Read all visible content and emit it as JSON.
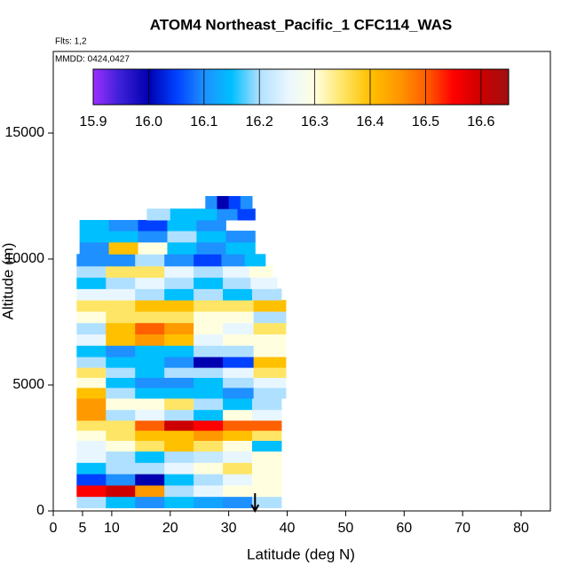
{
  "chart_data": {
    "type": "curtain",
    "title": "ATOM4 Northeast_Pacific_1 CFC114_WAS",
    "subtitle": "Flts: 1,2",
    "annotation": "MMDD: 0424,0427",
    "x_label": "Latitude (deg N)",
    "y_label": "Altitude (m)",
    "xlim": [
      0,
      85
    ],
    "ylim": [
      0,
      18240
    ],
    "xticks": [
      0,
      5,
      10,
      20,
      30,
      40,
      50,
      60,
      70,
      80
    ],
    "yticks": [
      0,
      5000,
      10000,
      15000
    ],
    "marker_x": 34.5,
    "colorbar": {
      "lim": [
        15.9,
        16.65
      ],
      "ticks": [
        15.9,
        {
          "value": 16,
          "label": "16.0"
        },
        16.1,
        16.2,
        16.3,
        16.4,
        16.5,
        16.6
      ],
      "colors": [
        "#9b30ff",
        "#3a1fd6",
        "#0000b0",
        "#0040ff",
        "#1e90ff",
        "#00bfff",
        "#b0e0ff",
        "#e8f6ff",
        "#ffffe0",
        "#ffe566",
        "#ffc000",
        "#ff9900",
        "#ff6000",
        "#ff0000",
        "#cc0000",
        "#a01010"
      ]
    },
    "rows": [
      {
        "altitude": 350,
        "x": [
          6.5,
          11.5,
          16.5,
          21.5,
          26.5,
          31.5,
          36.5
        ],
        "values": [
          16.2,
          16.15,
          16.1,
          16.15,
          16.12,
          16.1,
          16.2
        ]
      },
      {
        "altitude": 800,
        "x": [
          6.5,
          11.5,
          16.5,
          21.5,
          26.5,
          31.5,
          36.5
        ],
        "values": [
          16.55,
          16.6,
          16.45,
          16.2,
          16.25,
          16.3,
          16.3
        ]
      },
      {
        "altitude": 1250,
        "x": [
          6.5,
          11.5,
          16.5,
          21.5,
          26.5,
          31.5,
          36.5
        ],
        "values": [
          16.05,
          16.1,
          16.0,
          16.15,
          16.2,
          16.25,
          16.3
        ]
      },
      {
        "altitude": 1700,
        "x": [
          6.5,
          11.5,
          16.5,
          21.5,
          26.5,
          31.5,
          36.5
        ],
        "values": [
          16.15,
          16.2,
          16.2,
          16.25,
          16.3,
          16.35,
          16.3
        ]
      },
      {
        "altitude": 2150,
        "x": [
          6.5,
          11.5,
          16.5,
          21.5,
          26.5,
          31.5,
          36.5
        ],
        "values": [
          16.25,
          16.2,
          16.15,
          16.2,
          16.22,
          16.25,
          16.3
        ]
      },
      {
        "altitude": 2600,
        "x": [
          6.5,
          11.5,
          16.5,
          21.5,
          26.5,
          31.5,
          36.5
        ],
        "values": [
          16.25,
          16.3,
          16.35,
          16.4,
          16.35,
          16.3,
          16.15
        ]
      },
      {
        "altitude": 3000,
        "x": [
          6.5,
          11.5,
          16.5,
          21.5,
          26.5,
          31.5,
          36.5
        ],
        "values": [
          16.3,
          16.35,
          16.4,
          16.4,
          16.45,
          16.4,
          16.35
        ]
      },
      {
        "altitude": 3400,
        "x": [
          6.5,
          11.5,
          16.5,
          21.5,
          26.5,
          31.5,
          36.5
        ],
        "values": [
          16.35,
          16.35,
          16.5,
          16.6,
          16.55,
          16.5,
          16.5
        ]
      },
      {
        "altitude": 3800,
        "x": [
          6.5,
          11.5,
          16.5,
          21.5,
          26.5,
          31.5,
          36.5
        ],
        "values": [
          16.45,
          16.2,
          16.25,
          16.2,
          16.15,
          16.3,
          16.25
        ]
      },
      {
        "altitude": 4250,
        "x": [
          6.5,
          11.5,
          16.5,
          21.5,
          26.5,
          31.5,
          36.5
        ],
        "values": [
          16.45,
          16.3,
          16.3,
          16.35,
          16.2,
          16.15,
          16.2
        ]
      },
      {
        "altitude": 4700,
        "x": [
          6.5,
          11.5,
          16.5,
          21.5,
          26.5,
          31.5,
          37
        ],
        "values": [
          16.4,
          16.2,
          16.15,
          16.15,
          16.15,
          16.1,
          16.2
        ]
      },
      {
        "altitude": 5100,
        "x": [
          6.5,
          11.5,
          16.5,
          21.5,
          26.5,
          31.5,
          37
        ],
        "values": [
          16.3,
          16.15,
          16.1,
          16.1,
          16.15,
          16.2,
          16.25
        ]
      },
      {
        "altitude": 5500,
        "x": [
          6.5,
          11.5,
          16.5,
          21.5,
          26.5,
          31.5,
          37
        ],
        "values": [
          16.35,
          16.2,
          16.15,
          16.2,
          16.2,
          16.25,
          16.35
        ]
      },
      {
        "altitude": 5900,
        "x": [
          6.5,
          11.5,
          16.5,
          21.5,
          26.5,
          31.5,
          37
        ],
        "values": [
          16.2,
          16.15,
          16.15,
          16.1,
          16.0,
          16.05,
          16.4
        ]
      },
      {
        "altitude": 6350,
        "x": [
          6.5,
          11.5,
          16.5,
          21.5,
          26.5,
          31.5,
          37
        ],
        "values": [
          16.15,
          16.1,
          16.15,
          16.15,
          16.2,
          16.2,
          16.3
        ]
      },
      {
        "altitude": 6800,
        "x": [
          6.5,
          11.5,
          16.5,
          21.5,
          26.5,
          31.5,
          37
        ],
        "values": [
          16.25,
          16.4,
          16.45,
          16.4,
          16.25,
          16.3,
          16.3
        ]
      },
      {
        "altitude": 7250,
        "x": [
          6.5,
          11.5,
          16.5,
          21.5,
          26.5,
          31.5,
          37
        ],
        "values": [
          16.2,
          16.4,
          16.5,
          16.45,
          16.3,
          16.25,
          16.35
        ]
      },
      {
        "altitude": 7700,
        "x": [
          6.5,
          11.5,
          16.5,
          21.5,
          26.5,
          31.5,
          37
        ],
        "values": [
          16.3,
          16.35,
          16.35,
          16.35,
          16.3,
          16.3,
          16.2
        ]
      },
      {
        "altitude": 8150,
        "x": [
          6.5,
          11.5,
          16.5,
          21.5,
          26.5,
          31.5,
          37
        ],
        "values": [
          16.35,
          16.35,
          16.4,
          16.4,
          16.35,
          16.35,
          16.4
        ]
      },
      {
        "altitude": 8600,
        "x": [
          6.5,
          11.5,
          16.5,
          21.5,
          26.5,
          31.5,
          36.5
        ],
        "values": [
          16.25,
          16.25,
          16.2,
          16.15,
          16.2,
          16.15,
          16.2
        ]
      },
      {
        "altitude": 9050,
        "x": [
          6.5,
          11.5,
          16.5,
          21.5,
          26.5,
          31.5,
          36
        ],
        "values": [
          16.15,
          16.2,
          16.25,
          16.2,
          16.15,
          16.2,
          16.25
        ]
      },
      {
        "altitude": 9500,
        "x": [
          6.5,
          11.5,
          16.5,
          21.5,
          26.5,
          31.5,
          35.5
        ],
        "values": [
          16.2,
          16.35,
          16.35,
          16.25,
          16.2,
          16.25,
          16.3
        ]
      },
      {
        "altitude": 9950,
        "x": [
          6.5,
          11.5,
          16.5,
          21.5,
          26.5,
          31,
          34.5
        ],
        "values": [
          16.1,
          16.1,
          16.2,
          16.1,
          16.05,
          16.1,
          16.15
        ]
      },
      {
        "altitude": 10450,
        "x": [
          7,
          12,
          17,
          22,
          27,
          32
        ],
        "values": [
          16.1,
          16.4,
          16.3,
          16.15,
          16.1,
          16.15
        ]
      },
      {
        "altitude": 10900,
        "x": [
          7,
          12,
          17,
          22,
          27,
          32
        ],
        "values": [
          16.15,
          16.15,
          16.1,
          16.2,
          16.15,
          16.1
        ]
      },
      {
        "altitude": 11350,
        "x": [
          7,
          12,
          17,
          22,
          27
        ],
        "values": [
          16.15,
          16.1,
          16.05,
          16.15,
          16.1
        ]
      },
      {
        "altitude": 11750,
        "x": [
          18,
          22,
          26,
          30,
          33
        ],
        "values": [
          16.2,
          16.15,
          16.15,
          16.1,
          16.05
        ]
      },
      {
        "altitude": 12250,
        "x": [
          27,
          29,
          31,
          33
        ],
        "values": [
          16.1,
          16.0,
          16.05,
          16.1
        ]
      }
    ]
  }
}
